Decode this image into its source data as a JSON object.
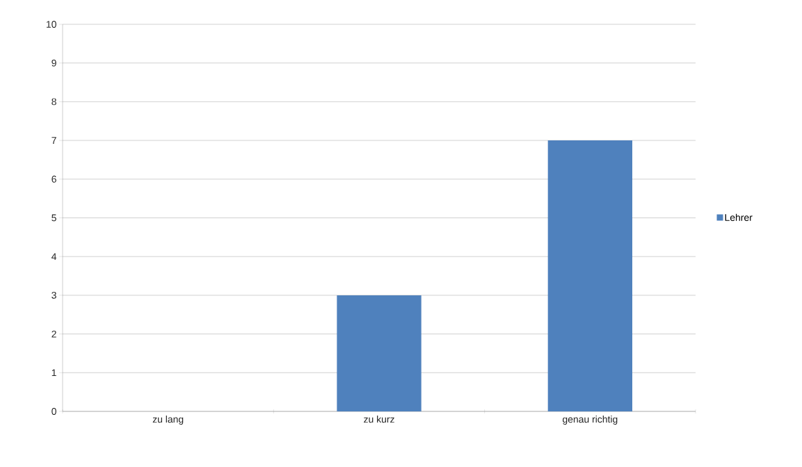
{
  "chart_data": {
    "type": "bar",
    "categories": [
      "zu lang",
      "zu kurz",
      "genau richtig"
    ],
    "series": [
      {
        "name": "Lehrer",
        "color": "#4f81bd",
        "values": [
          0,
          3,
          7
        ]
      }
    ],
    "ylim": [
      0,
      10
    ],
    "yticks": [
      0,
      1,
      2,
      3,
      4,
      5,
      6,
      7,
      8,
      9,
      10
    ],
    "grid": "y",
    "legend": "right"
  }
}
